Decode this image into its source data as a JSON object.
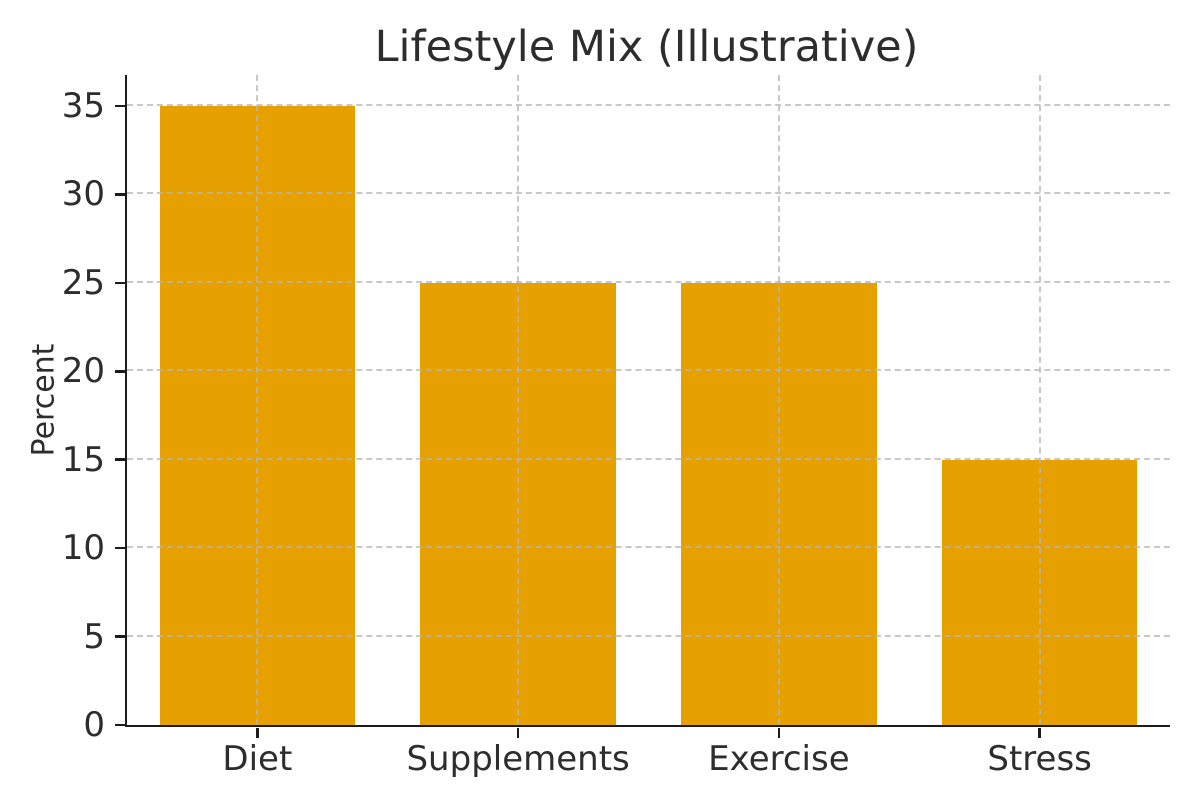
{
  "chart_data": {
    "type": "bar",
    "title": "Lifestyle Mix (Illustrative)",
    "categories": [
      "Diet",
      "Supplements",
      "Exercise",
      "Stress"
    ],
    "values": [
      35,
      25,
      25,
      15
    ],
    "xlabel": "",
    "ylabel": "Percent",
    "ylim": [
      0,
      36.75
    ],
    "yticks": [
      0,
      5,
      10,
      15,
      20,
      25,
      30,
      35
    ],
    "legend": "none",
    "grid": "dashed, horizontal and vertical, drawn above bars",
    "bar_color": "#E6A100",
    "grid_color": "#c3c3c3",
    "text_color": "#2d2d2d",
    "spine_color": "#1c1c1c",
    "bar_width_fraction": 0.75
  }
}
